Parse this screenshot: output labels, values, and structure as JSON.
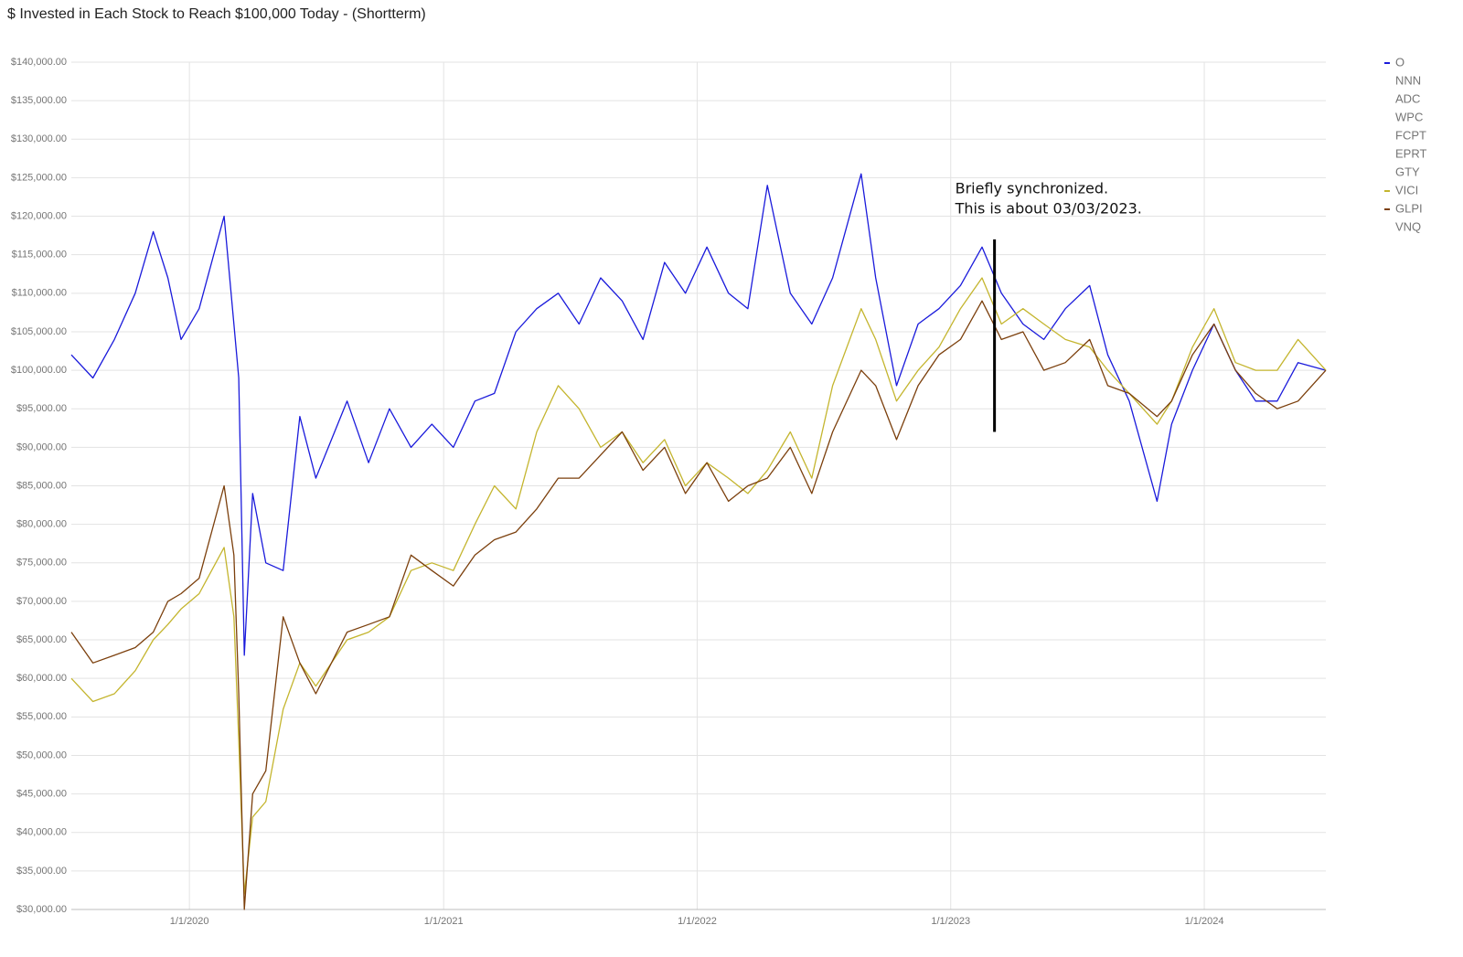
{
  "chart_data": {
    "type": "line",
    "title": "$ Invested in Each Stock to Reach $100,000 Today - (Shortterm)",
    "x": [
      "2019-07-15",
      "2019-08-15",
      "2019-09-15",
      "2019-10-15",
      "2019-11-10",
      "2019-12-01",
      "2019-12-20",
      "2020-01-15",
      "2020-02-20",
      "2020-03-05",
      "2020-03-12",
      "2020-03-20",
      "2020-04-01",
      "2020-04-20",
      "2020-05-15",
      "2020-06-08",
      "2020-07-01",
      "2020-08-15",
      "2020-09-15",
      "2020-10-15",
      "2020-11-15",
      "2020-12-15",
      "2021-01-15",
      "2021-02-15",
      "2021-03-15",
      "2021-04-15",
      "2021-05-15",
      "2021-06-15",
      "2021-07-15",
      "2021-08-15",
      "2021-09-15",
      "2021-10-15",
      "2021-11-15",
      "2021-12-15",
      "2022-01-15",
      "2022-02-15",
      "2022-03-15",
      "2022-04-12",
      "2022-05-15",
      "2022-06-15",
      "2022-07-15",
      "2022-08-25",
      "2022-09-15",
      "2022-10-15",
      "2022-11-15",
      "2022-12-15",
      "2023-01-15",
      "2023-02-15",
      "2023-03-15",
      "2023-04-15",
      "2023-05-15",
      "2023-06-15",
      "2023-07-20",
      "2023-08-15",
      "2023-09-15",
      "2023-10-25",
      "2023-11-15",
      "2023-12-15",
      "2024-01-15",
      "2024-02-15",
      "2024-03-15",
      "2024-04-15",
      "2024-05-15",
      "2024-06-24"
    ],
    "series": [
      {
        "name": "O",
        "color": "#1a1adb",
        "values": [
          102000,
          99000,
          104000,
          110000,
          118000,
          112000,
          104000,
          108000,
          120000,
          106000,
          99000,
          63000,
          84000,
          75000,
          74000,
          94000,
          86000,
          96000,
          88000,
          95000,
          90000,
          93000,
          90000,
          96000,
          97000,
          105000,
          108000,
          110000,
          106000,
          112000,
          109000,
          104000,
          114000,
          110000,
          116000,
          110000,
          108000,
          124000,
          110000,
          106000,
          112000,
          125500,
          112000,
          98000,
          106000,
          108000,
          111000,
          116000,
          110000,
          106000,
          104000,
          108000,
          111000,
          102000,
          96000,
          83000,
          93000,
          100000,
          106000,
          100000,
          96000,
          96000,
          101000,
          100000
        ]
      },
      {
        "name": "NNN"
      },
      {
        "name": "ADC"
      },
      {
        "name": "WPC"
      },
      {
        "name": "FCPT"
      },
      {
        "name": "EPRT"
      },
      {
        "name": "GTY"
      },
      {
        "name": "VICI",
        "color": "#c4b52e",
        "values": [
          60000,
          57000,
          58000,
          61000,
          65000,
          67000,
          69000,
          71000,
          77000,
          68000,
          52000,
          32000,
          42000,
          44000,
          56000,
          62000,
          59000,
          65000,
          66000,
          68000,
          74000,
          75000,
          74000,
          80000,
          85000,
          82000,
          92000,
          98000,
          95000,
          90000,
          92000,
          88000,
          91000,
          85000,
          88000,
          86000,
          84000,
          87000,
          92000,
          86000,
          98000,
          108000,
          104000,
          96000,
          100000,
          103000,
          108000,
          112000,
          106000,
          108000,
          106000,
          104000,
          103000,
          100000,
          97000,
          93000,
          96000,
          103000,
          108000,
          101000,
          100000,
          100000,
          104000,
          100000
        ]
      },
      {
        "name": "GLPI",
        "color": "#7b3f0c",
        "values": [
          66000,
          62000,
          63000,
          64000,
          66000,
          70000,
          71000,
          73000,
          85000,
          76000,
          58000,
          30000,
          45000,
          48000,
          68000,
          62000,
          58000,
          66000,
          67000,
          68000,
          76000,
          74000,
          72000,
          76000,
          78000,
          79000,
          82000,
          86000,
          86000,
          89000,
          92000,
          87000,
          90000,
          84000,
          88000,
          83000,
          85000,
          86000,
          90000,
          84000,
          92000,
          100000,
          98000,
          91000,
          98000,
          102000,
          104000,
          109000,
          104000,
          105000,
          100000,
          101000,
          104000,
          98000,
          97000,
          94000,
          96000,
          102000,
          106000,
          100000,
          97000,
          95000,
          96000,
          100000
        ]
      },
      {
        "name": "VNQ"
      }
    ],
    "xlim": [
      "2019-07-15",
      "2024-06-24"
    ],
    "xticks": [
      {
        "value": "2020-01-01",
        "label": "1/1/2020"
      },
      {
        "value": "2021-01-01",
        "label": "1/1/2021"
      },
      {
        "value": "2022-01-01",
        "label": "1/1/2022"
      },
      {
        "value": "2023-01-01",
        "label": "1/1/2023"
      },
      {
        "value": "2024-01-01",
        "label": "1/1/2024"
      }
    ],
    "ylim": [
      30000,
      140000
    ],
    "yticks": [
      {
        "value": 30000,
        "label": "$30,000.00"
      },
      {
        "value": 35000,
        "label": "$35,000.00"
      },
      {
        "value": 40000,
        "label": "$40,000.00"
      },
      {
        "value": 45000,
        "label": "$45,000.00"
      },
      {
        "value": 50000,
        "label": "$50,000.00"
      },
      {
        "value": 55000,
        "label": "$55,000.00"
      },
      {
        "value": 60000,
        "label": "$60,000.00"
      },
      {
        "value": 65000,
        "label": "$65,000.00"
      },
      {
        "value": 70000,
        "label": "$70,000.00"
      },
      {
        "value": 75000,
        "label": "$75,000.00"
      },
      {
        "value": 80000,
        "label": "$80,000.00"
      },
      {
        "value": 85000,
        "label": "$85,000.00"
      },
      {
        "value": 90000,
        "label": "$90,000.00"
      },
      {
        "value": 95000,
        "label": "$95,000.00"
      },
      {
        "value": 100000,
        "label": "$100,000.00"
      },
      {
        "value": 105000,
        "label": "$105,000.00"
      },
      {
        "value": 110000,
        "label": "$110,000.00"
      },
      {
        "value": 115000,
        "label": "$115,000.00"
      },
      {
        "value": 120000,
        "label": "$120,000.00"
      },
      {
        "value": 125000,
        "label": "$125,000.00"
      },
      {
        "value": 130000,
        "label": "$130,000.00"
      },
      {
        "value": 135000,
        "label": "$135,000.00"
      },
      {
        "value": 140000,
        "label": "$140,000.00"
      }
    ],
    "grid": true,
    "legend": "right",
    "annotation": {
      "text": [
        "Briefly synchronized.",
        "This is about 03/03/2023."
      ],
      "x": "2023-03-05",
      "y": [
        92000,
        117000
      ],
      "color": "#000000"
    }
  }
}
